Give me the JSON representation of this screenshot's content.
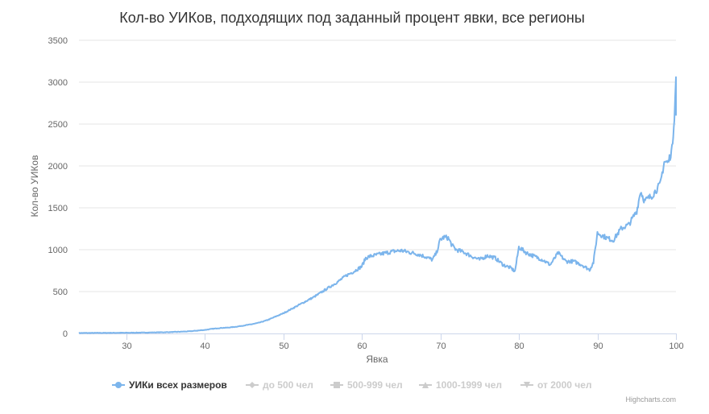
{
  "credits": "Highcharts.com",
  "chart_data": {
    "type": "line",
    "title": "Кол-во УИКов, подходящих под заданный процент явки, все регионы",
    "xlabel": "Явка",
    "ylabel": "Кол-во УИКов",
    "xlim": [
      24,
      100
    ],
    "ylim": [
      0,
      3500
    ],
    "x_ticks": [
      30,
      40,
      50,
      60,
      70,
      80,
      90,
      100
    ],
    "y_ticks": [
      0,
      500,
      1000,
      1500,
      2000,
      2500,
      3000,
      3500
    ],
    "grid": true,
    "legend_position": "bottom",
    "colors": {
      "series": "#7cb5ec",
      "grid": "#e6e6e6",
      "axis_text": "#666666",
      "title": "#333333",
      "legend_active": "#333333",
      "legend_inactive": "#cccccc"
    },
    "series": [
      {
        "name": "УИКи всех размеров",
        "visible": true,
        "marker": "circle",
        "points": [
          [
            24,
            5
          ],
          [
            26,
            6
          ],
          [
            28,
            7
          ],
          [
            30,
            8
          ],
          [
            32,
            10
          ],
          [
            34,
            13
          ],
          [
            36,
            17
          ],
          [
            38,
            25
          ],
          [
            40,
            42
          ],
          [
            41,
            55
          ],
          [
            42,
            65
          ],
          [
            43,
            70
          ],
          [
            44,
            80
          ],
          [
            45,
            95
          ],
          [
            46,
            110
          ],
          [
            47,
            130
          ],
          [
            48,
            160
          ],
          [
            49,
            200
          ],
          [
            50,
            240
          ],
          [
            51,
            290
          ],
          [
            52,
            340
          ],
          [
            53,
            390
          ],
          [
            54,
            440
          ],
          [
            55,
            500
          ],
          [
            56,
            560
          ],
          [
            57,
            620
          ],
          [
            58,
            690
          ],
          [
            59,
            740
          ],
          [
            60,
            800
          ],
          [
            60.5,
            900
          ],
          [
            61,
            920
          ],
          [
            62,
            940
          ],
          [
            63,
            960
          ],
          [
            64,
            980
          ],
          [
            65,
            990
          ],
          [
            66,
            970
          ],
          [
            67,
            950
          ],
          [
            68,
            920
          ],
          [
            69,
            880
          ],
          [
            69.5,
            960
          ],
          [
            70,
            1120
          ],
          [
            70.5,
            1150
          ],
          [
            71,
            1140
          ],
          [
            71.5,
            1050
          ],
          [
            72,
            1000
          ],
          [
            73,
            970
          ],
          [
            74,
            920
          ],
          [
            75,
            880
          ],
          [
            76,
            930
          ],
          [
            77,
            900
          ],
          [
            78,
            820
          ],
          [
            79,
            780
          ],
          [
            79.5,
            740
          ],
          [
            80,
            1030
          ],
          [
            81,
            960
          ],
          [
            82,
            920
          ],
          [
            83,
            880
          ],
          [
            84,
            820
          ],
          [
            85,
            960
          ],
          [
            86,
            860
          ],
          [
            87,
            860
          ],
          [
            88,
            820
          ],
          [
            89,
            760
          ],
          [
            89.5,
            850
          ],
          [
            90,
            1200
          ],
          [
            91,
            1150
          ],
          [
            92,
            1110
          ],
          [
            93,
            1250
          ],
          [
            94,
            1300
          ],
          [
            95,
            1460
          ],
          [
            95.5,
            1700
          ],
          [
            96,
            1580
          ],
          [
            97,
            1650
          ],
          [
            98,
            1780
          ],
          [
            98.5,
            2050
          ],
          [
            99,
            2040
          ],
          [
            99.5,
            2200
          ],
          [
            99.8,
            2600
          ],
          [
            100,
            3060
          ]
        ]
      },
      {
        "name": "до 500 чел",
        "visible": false,
        "marker": "diamond"
      },
      {
        "name": "500-999 чел",
        "visible": false,
        "marker": "square"
      },
      {
        "name": "1000-1999 чел",
        "visible": false,
        "marker": "triangle"
      },
      {
        "name": "от 2000 чел",
        "visible": false,
        "marker": "triangle-down"
      }
    ]
  }
}
